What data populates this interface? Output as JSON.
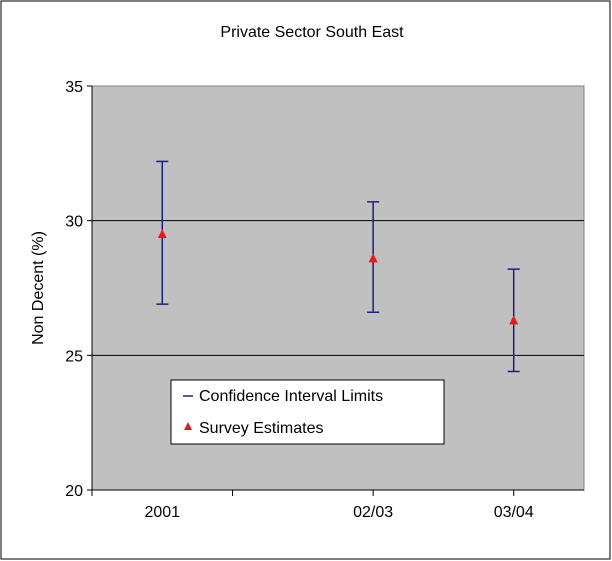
{
  "chart_data": {
    "type": "scatter",
    "title": "Private Sector South East",
    "ylabel": "Non Decent (%)",
    "xlabel": "",
    "ylim": [
      20,
      35
    ],
    "yticks": [
      20,
      25,
      30,
      35
    ],
    "grid": "horizontal",
    "legend_position": "lower-left",
    "categories": [
      "2001",
      "02/03",
      "03/04"
    ],
    "x_positions": [
      2001,
      2002.5,
      2003.5
    ],
    "x_range": [
      2000.5,
      2004
    ],
    "series": [
      {
        "name": "Confidence Interval Limits",
        "kind": "error-bars",
        "color": "#1f1f7a",
        "lower": [
          26.9,
          26.6,
          24.4
        ],
        "upper": [
          32.2,
          30.7,
          28.2
        ]
      },
      {
        "name": "Survey Estimates",
        "kind": "triangle-markers",
        "color": "#e8191d",
        "values": [
          29.5,
          28.6,
          26.3
        ]
      }
    ],
    "plot_background": "#c0c0c0"
  }
}
